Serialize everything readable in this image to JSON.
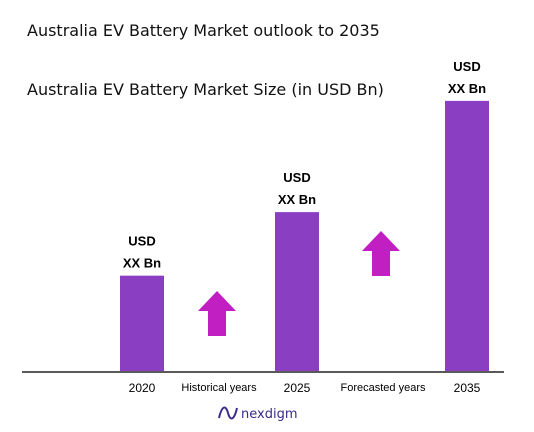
{
  "titles": {
    "main": "Australia EV Battery Market outlook to 2035",
    "sub": "Australia EV Battery Market Size (in USD Bn)"
  },
  "chart_data": {
    "type": "bar",
    "categories": [
      "2020",
      "2025",
      "2035"
    ],
    "values": [
      3,
      5,
      8.5
    ],
    "value_labels": [
      [
        "USD",
        "XX Bn"
      ],
      [
        "USD",
        "XX Bn"
      ],
      [
        "USD",
        "XX Bn"
      ]
    ],
    "ylim": [
      0,
      9
    ],
    "grid": false,
    "bar_color": "#8a3fc3",
    "annotations": [
      "Historical years",
      "Forecasted years"
    ],
    "arrow_color": "#c21fc3"
  },
  "logo": {
    "text": "nexdigm",
    "icon": "nexdigm-logo-icon",
    "color": "#3a2a8c"
  }
}
